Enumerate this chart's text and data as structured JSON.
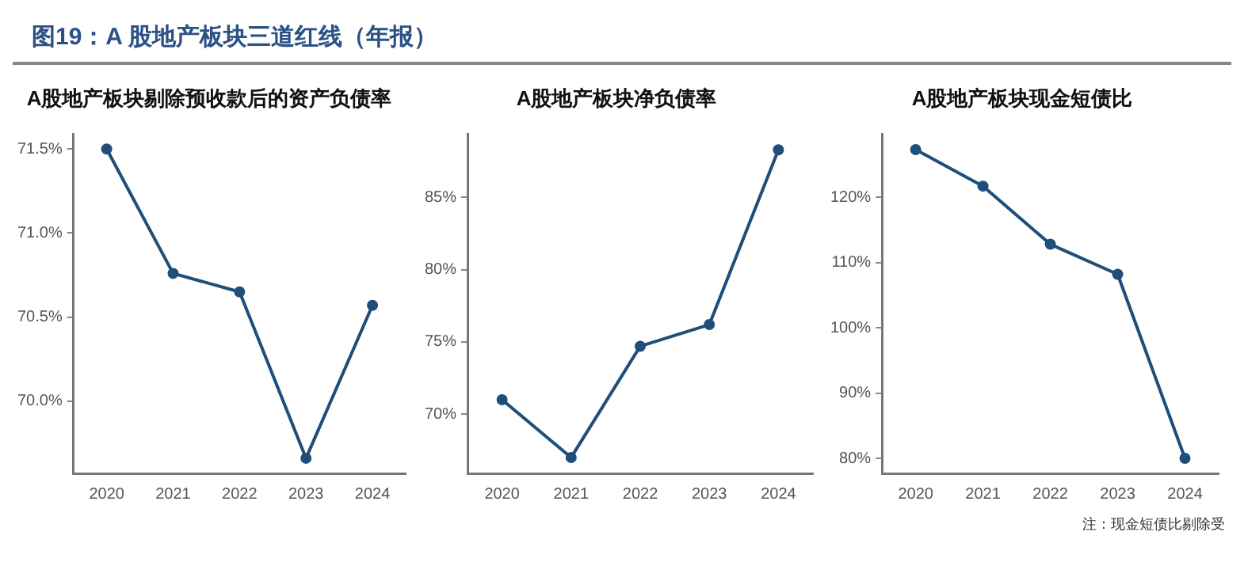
{
  "chart_data": [
    {
      "type": "other",
      "title": "图19：A 股地产板块三道红线（年报）"
    },
    {
      "type": "line",
      "title": "A股地产板块剔除预收款后的资产负债率",
      "categories": [
        "2020",
        "2021",
        "2022",
        "2023",
        "2024"
      ],
      "series": [
        {
          "color": "#1f4e79",
          "values": [
            71.5,
            70.76,
            70.65,
            69.66,
            70.57
          ]
        }
      ],
      "ylim": [
        69.57,
        71.59
      ],
      "yticks": [
        {
          "value": 70,
          "label": "70.0%"
        },
        {
          "value": 70.5,
          "label": "70.5%"
        },
        {
          "value": 71,
          "label": "71.0%"
        },
        {
          "value": 71.5,
          "label": "71.5%"
        }
      ],
      "marker": "circle",
      "grid": false,
      "legend": false
    },
    {
      "type": "line",
      "title": "A股地产板块净负债率",
      "categories": [
        "2020",
        "2021",
        "2022",
        "2023",
        "2024"
      ],
      "series": [
        {
          "color": "#1f4e79",
          "values": [
            71.0,
            67.0,
            74.7,
            76.2,
            88.3
          ]
        }
      ],
      "ylim": [
        65.9,
        89.4
      ],
      "yticks": [
        {
          "value": 70,
          "label": "70%"
        },
        {
          "value": 75,
          "label": "75%"
        },
        {
          "value": 80,
          "label": "80%"
        },
        {
          "value": 85,
          "label": "85%"
        }
      ],
      "marker": "circle",
      "grid": false,
      "legend": false
    },
    {
      "type": "line",
      "title": "A股地产板块现金短债比",
      "categories": [
        "2020",
        "2021",
        "2022",
        "2023",
        "2024"
      ],
      "series": [
        {
          "color": "#1f4e79",
          "values": [
            127.3,
            121.7,
            112.8,
            108.2,
            80
          ]
        }
      ],
      "ylim": [
        77.7,
        129.7
      ],
      "yticks": [
        {
          "value": 80,
          "label": "80%"
        },
        {
          "value": 90,
          "label": "90%"
        },
        {
          "value": 100,
          "label": "100%"
        },
        {
          "value": 110,
          "label": "110%"
        },
        {
          "value": 120,
          "label": "120%"
        }
      ],
      "marker": "circle",
      "grid": false,
      "legend": false,
      "annotations": [
        "注：现金短债比剔除受"
      ]
    }
  ]
}
